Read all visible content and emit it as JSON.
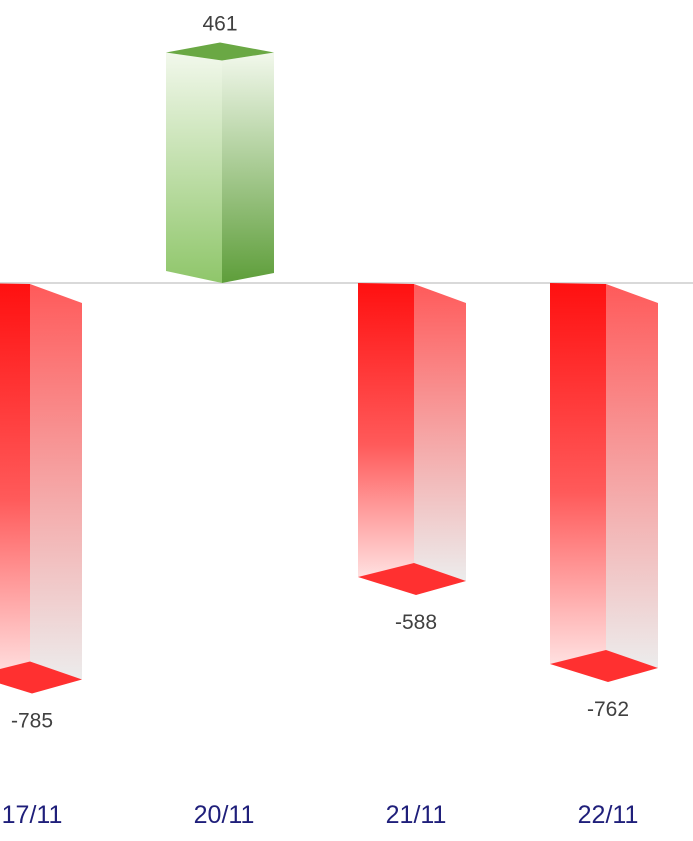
{
  "chart_data": {
    "type": "bar",
    "style": "3d-column",
    "categories": [
      "17/11",
      "20/11",
      "21/11",
      "22/11"
    ],
    "values": [
      -785,
      461,
      -588,
      -762
    ],
    "data_labels": [
      "-785",
      "461",
      "-588",
      "-762"
    ],
    "grid": false,
    "legend": "none",
    "colors": {
      "positive_dark": "#5e9e3a",
      "positive_mid": "#8fc66a",
      "positive_light": "#f2f8ec",
      "positive_top": "#6aa844",
      "negative_dark": "#ff1010",
      "negative_mid": "#ff5a5a",
      "negative_light": "#ffe0e0",
      "negative_side_light": "#ececec",
      "negative_cap": "#ff3030",
      "baseline": "#d9d9d9",
      "tick_text": "#1f1f7a",
      "label_text": "#404040"
    }
  }
}
